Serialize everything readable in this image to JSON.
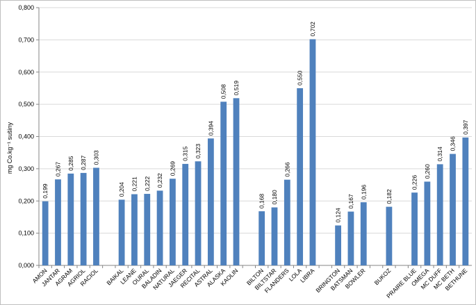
{
  "chart_data": {
    "type": "bar",
    "ylabel": "mg Co.kg⁻¹ sušiny",
    "ylim": [
      0,
      0.8
    ],
    "ytick_step": 0.1,
    "ytick_labels": [
      "0,000",
      "0,100",
      "0,200",
      "0,300",
      "0,400",
      "0,500",
      "0,600",
      "0,700",
      "0,800"
    ],
    "grid": true,
    "legend": "none",
    "bar_color": "#4f81bd",
    "grid_color": "#d9d9d9",
    "groups": [
      {
        "categories": [
          "AMON",
          "JANTAR",
          "AGRAM",
          "AGRIOL",
          "RACIOL"
        ],
        "values": [
          0.199,
          0.267,
          0.285,
          0.287,
          0.303
        ],
        "labels": [
          "0,199",
          "0,267",
          "0,285",
          "0,287",
          "0,303"
        ]
      },
      {
        "categories": [
          "BAIKAL",
          "LEANE",
          "OURAL",
          "BALADIN",
          "NATURAL",
          "JAEGER",
          "RECITAL",
          "ASTRAL",
          "ALASKA",
          "KAOLIN"
        ],
        "values": [
          0.204,
          0.221,
          0.222,
          0.232,
          0.269,
          0.315,
          0.323,
          0.394,
          0.508,
          0.519
        ],
        "labels": [
          "0,204",
          "0,221",
          "0,222",
          "0,232",
          "0,269",
          "0,315",
          "0,323",
          "0,394",
          "0,508",
          "0,519"
        ]
      },
      {
        "categories": [
          "BILTON",
          "BILTSTAR",
          "FLANDERS",
          "LOLA",
          "LIBRA"
        ],
        "values": [
          0.168,
          0.18,
          0.266,
          0.55,
          0.702
        ],
        "labels": [
          "0,168",
          "0,180",
          "0,266",
          "0,550",
          "0,702"
        ]
      },
      {
        "categories": [
          "BRINGTON",
          "BATSMAN",
          "BOWLER"
        ],
        "values": [
          0.124,
          0.167,
          0.196
        ],
        "labels": [
          "0,124",
          "0,167",
          "0,196"
        ]
      },
      {
        "categories": [
          "BUKOZ"
        ],
        "values": [
          0.182
        ],
        "labels": [
          "0,182"
        ]
      },
      {
        "categories": [
          "PRAIRE BLUE",
          "OMEGA",
          "MC DUFF",
          "MC BETH",
          "BETHUNE"
        ],
        "values": [
          0.226,
          0.26,
          0.314,
          0.346,
          0.397
        ],
        "labels": [
          "0,226",
          "0,260",
          "0,314",
          "0,346",
          "0,397"
        ]
      }
    ]
  }
}
